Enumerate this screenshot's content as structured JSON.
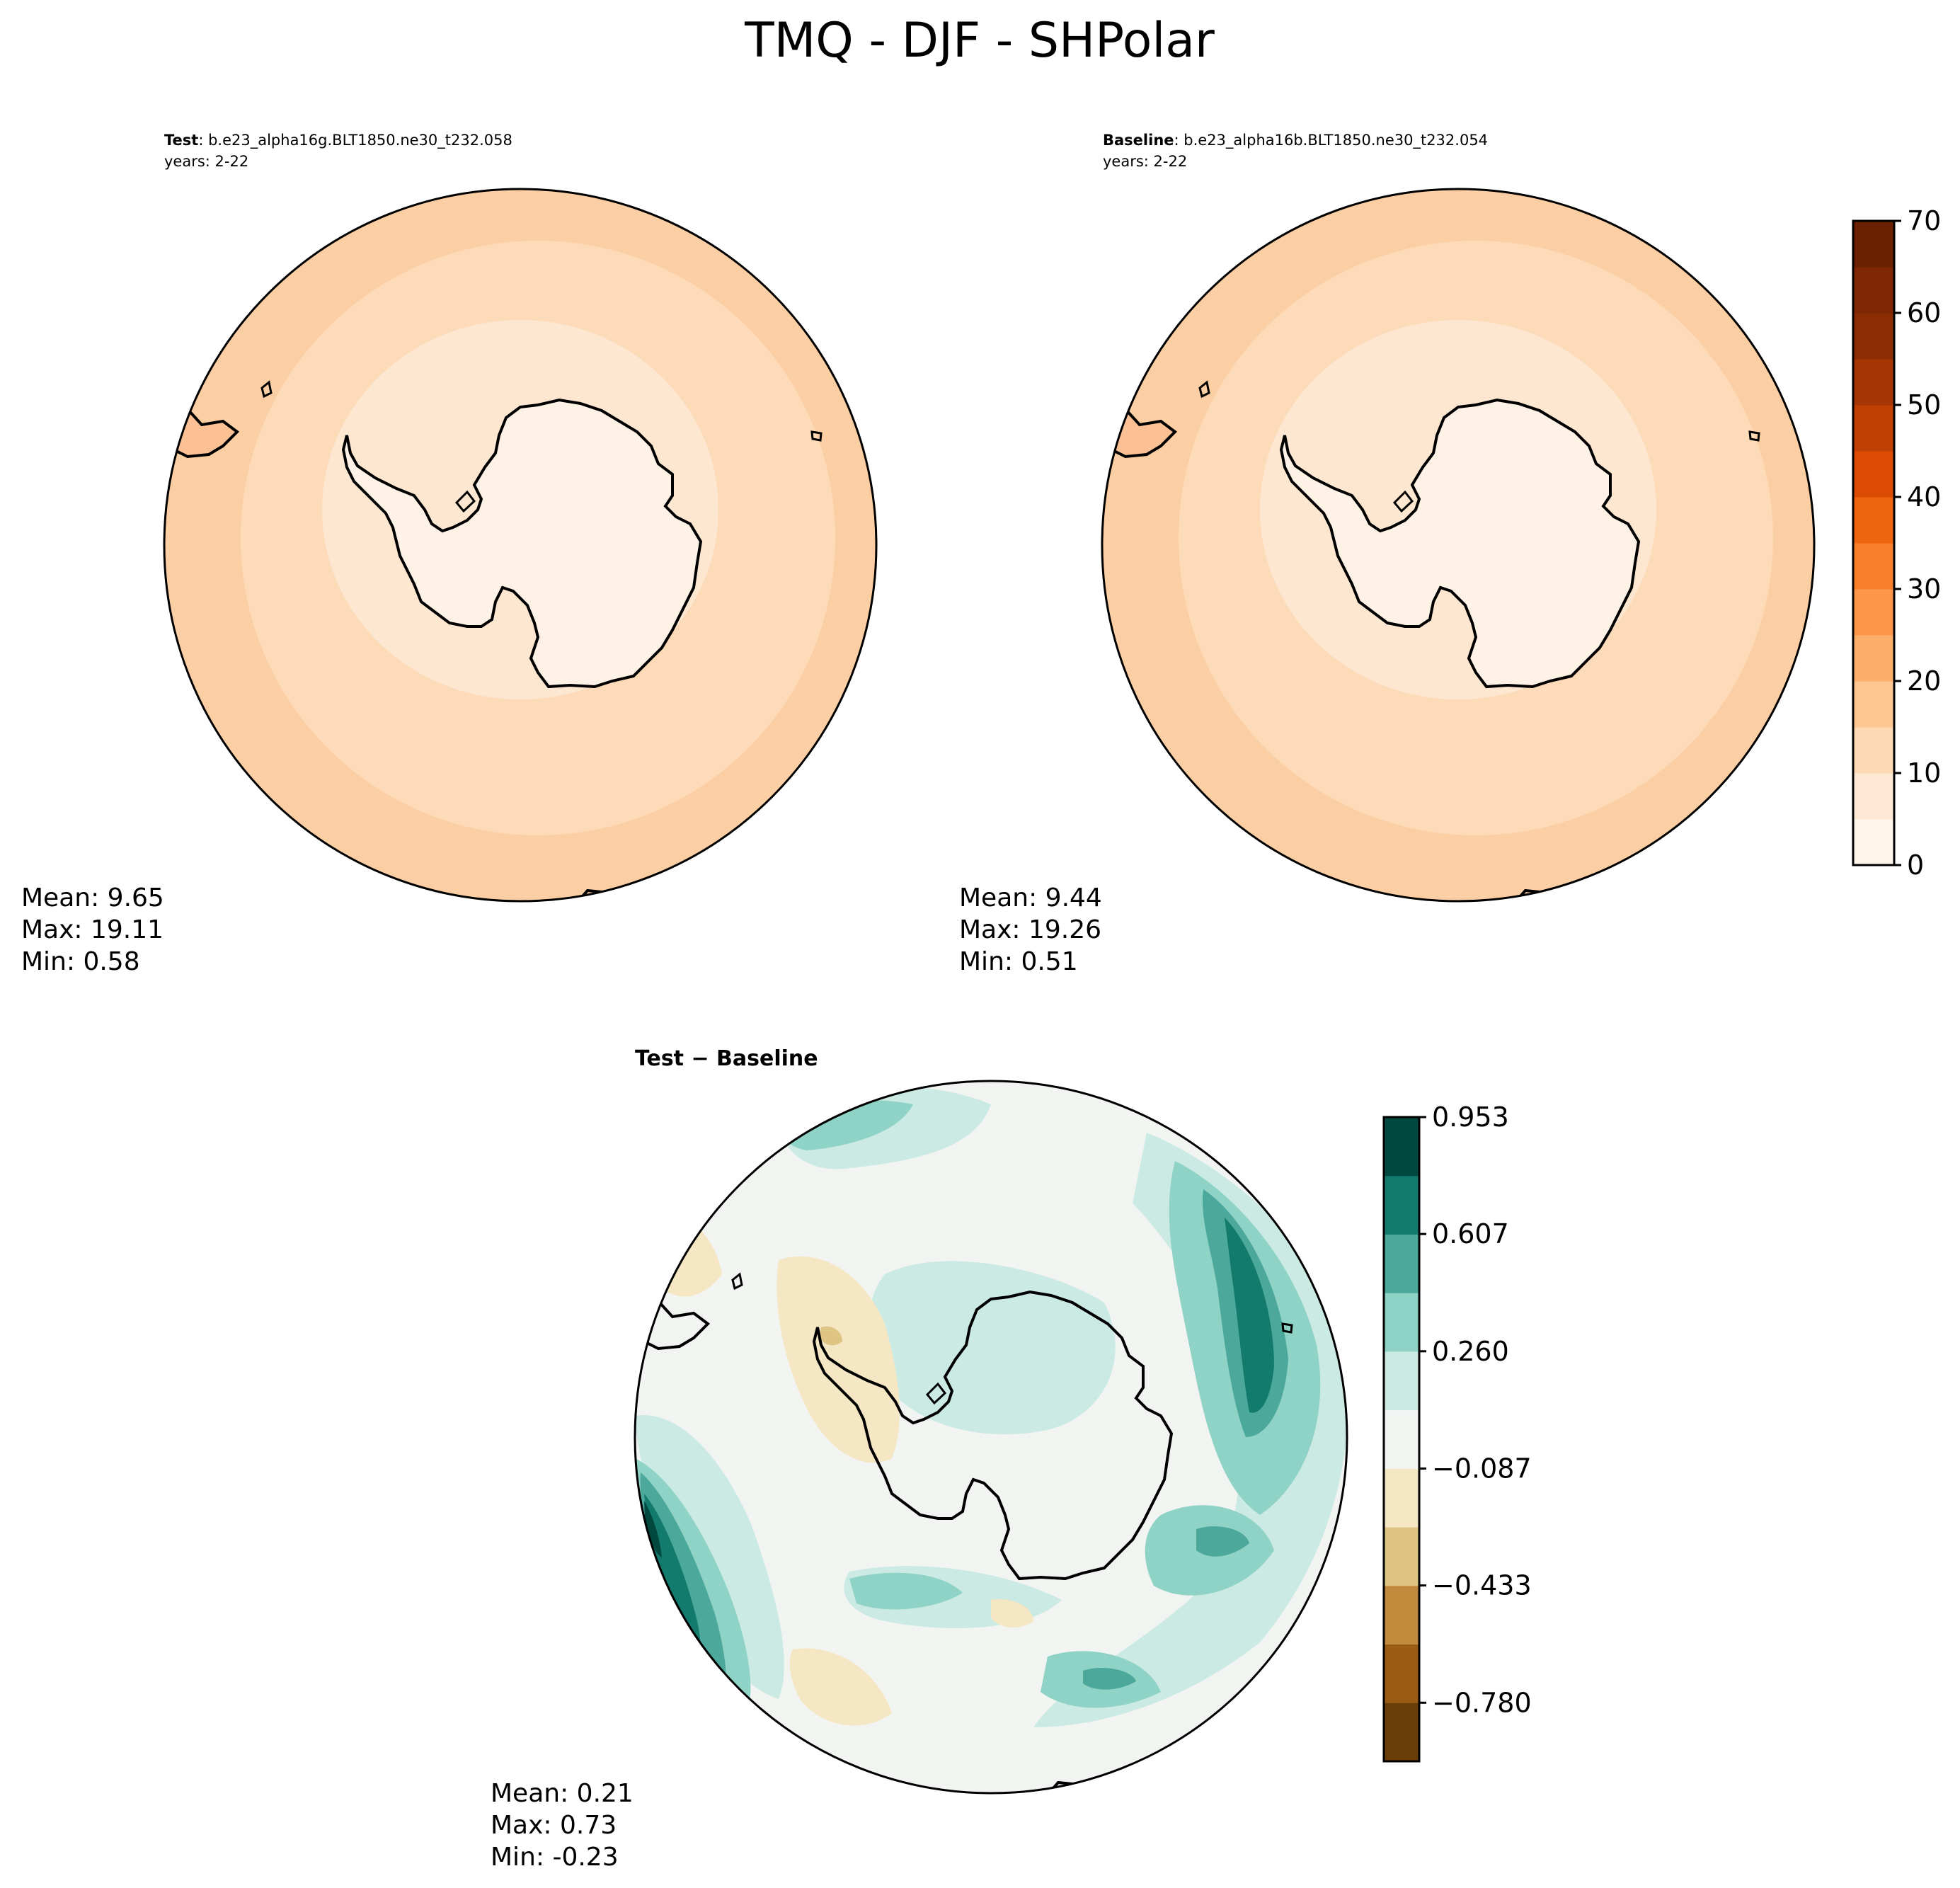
{
  "title": "TMQ - DJF - SHPolar",
  "panels": {
    "test": {
      "label": "Test",
      "case": ": b.e23_alpha16g.BLT1850.ne30_t232.058",
      "years": "years: 2-22",
      "stats": {
        "mean": "Mean:  9.65",
        "max": "Max: 19.11",
        "min": "Min:  0.58"
      }
    },
    "baseline": {
      "label": "Baseline",
      "case": ": b.e23_alpha16b.BLT1850.ne30_t232.054",
      "years": "years: 2-22",
      "stats": {
        "mean": "Mean:  9.44",
        "max": "Max: 19.26",
        "min": "Min:  0.51"
      }
    },
    "diff": {
      "title": "Test − Baseline",
      "stats": {
        "mean": "Mean:  0.21",
        "max": "Max:  0.73",
        "min": "Min: -0.23"
      }
    }
  },
  "colorbars": {
    "main": {
      "ticks": [
        "0",
        "10",
        "20",
        "30",
        "40",
        "50",
        "60",
        "70"
      ],
      "levels": [
        0,
        5,
        10,
        15,
        20,
        25,
        30,
        35,
        40,
        45,
        50,
        55,
        60,
        65,
        70
      ],
      "colors": [
        "#fff5eb",
        "#fee8d3",
        "#fdd9b4",
        "#fdc692",
        "#fdae6b",
        "#fd9649",
        "#f8802d",
        "#ee6511",
        "#db4b03",
        "#c03f02",
        "#a53603",
        "#8a2c04",
        "#7f2704",
        "#6b2002"
      ]
    },
    "diff": {
      "ticks": [
        "0.953",
        "0.607",
        "0.260",
        "−0.087",
        "−0.433",
        "−0.780"
      ],
      "tick_values": [
        0.953,
        0.607,
        0.26,
        -0.087,
        -0.433,
        -0.78
      ],
      "colors_bottom_to_top": [
        "#6b3d08",
        "#9a5c14",
        "#c28a3c",
        "#dfc583",
        "#f5e7c4",
        "#f2f4f2",
        "#cbeae3",
        "#8fd2c6",
        "#4ca89b",
        "#137a6e",
        "#01493f"
      ]
    }
  },
  "map_colors": {
    "ring_outer": "#fbcea3",
    "ring_mid": "#fddbb8",
    "ring_inner": "#fde7d1",
    "land": "#fef2e6",
    "coast": "#000000"
  }
}
